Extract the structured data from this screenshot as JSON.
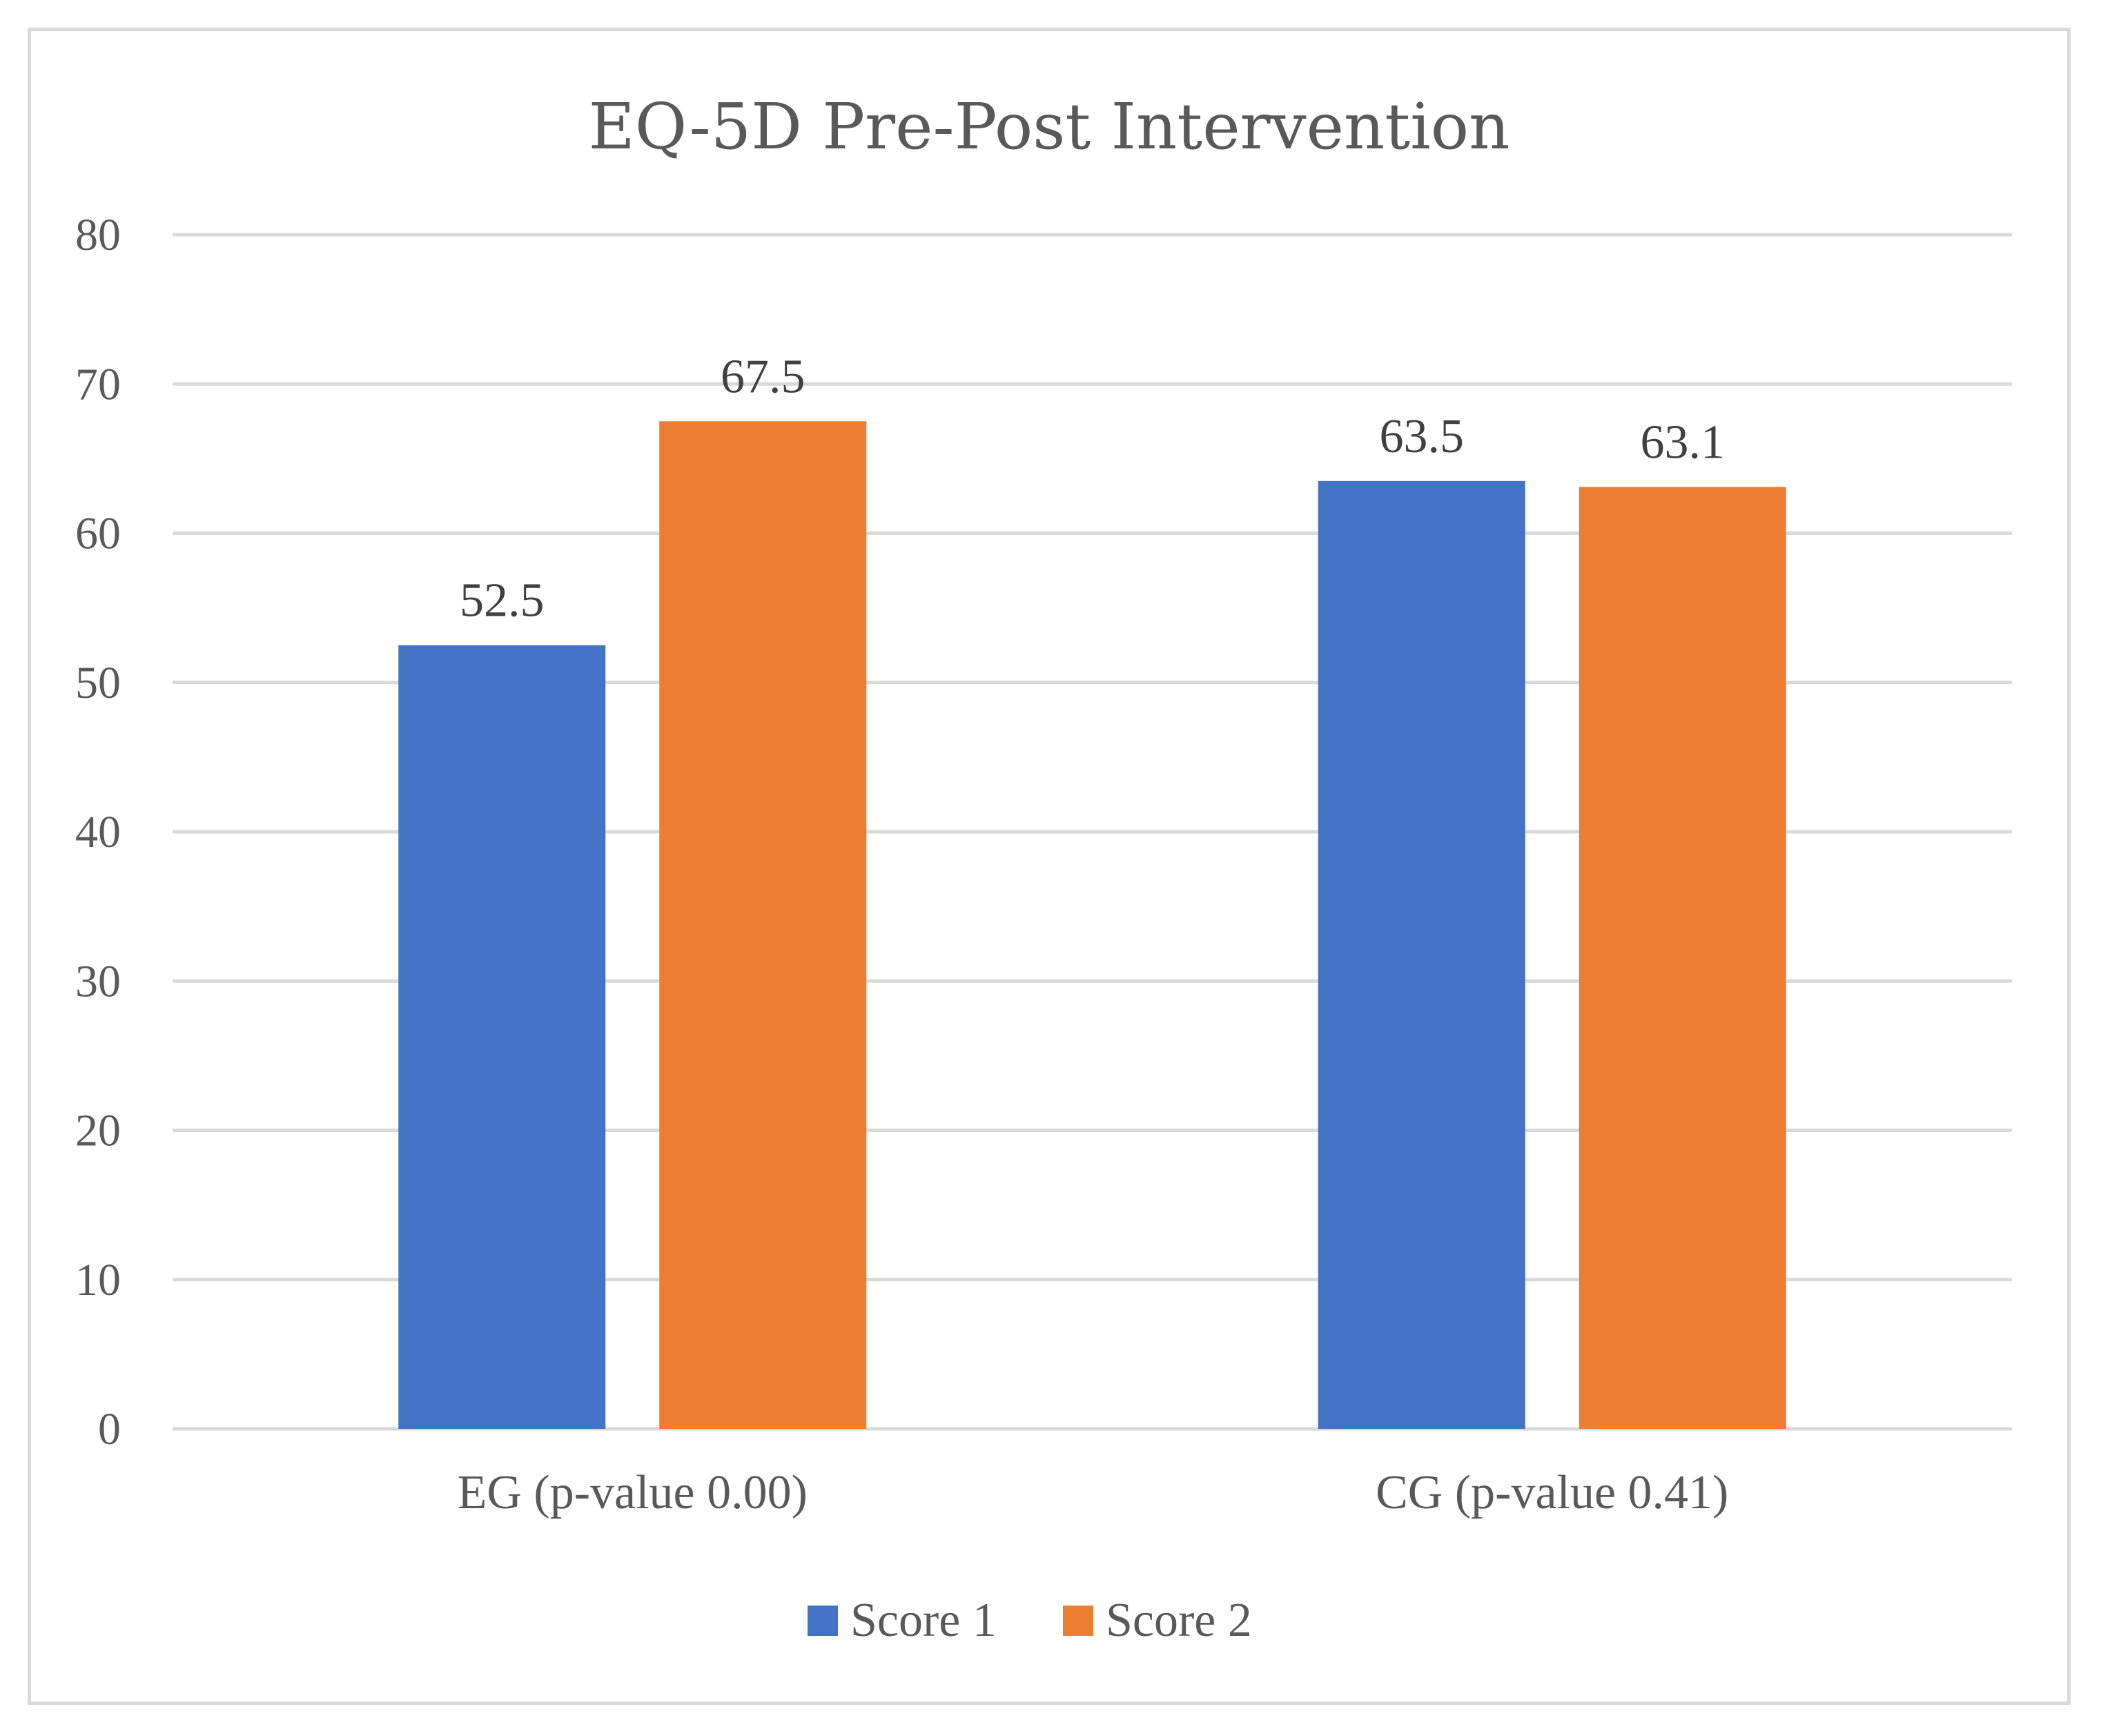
{
  "chart_data": {
    "type": "bar",
    "title": "EQ-5D Pre-Post Intervention",
    "categories": [
      "EG (p-value 0.00)",
      "CG (p-value 0.41)"
    ],
    "series": [
      {
        "name": "Score 1",
        "values": [
          52.5,
          63.5
        ],
        "color": "#4472c4"
      },
      {
        "name": "Score 2",
        "values": [
          67.5,
          63.1
        ],
        "color": "#ed7d31"
      }
    ],
    "yticks": [
      "0",
      "10",
      "20",
      "30",
      "40",
      "50",
      "60",
      "70",
      "80"
    ],
    "ylim": [
      0,
      80
    ],
    "xlabel": "",
    "ylabel": "",
    "grid": true,
    "legend": "bottom",
    "data_labels": [
      "52.5",
      "63.5",
      "67.5",
      "63.1"
    ]
  }
}
